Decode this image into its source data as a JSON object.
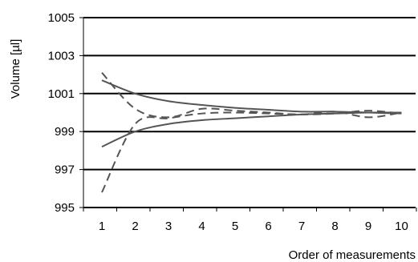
{
  "chart_data": {
    "type": "line",
    "title": "",
    "xlabel": "Order of measurements",
    "ylabel": "Volume [µl]",
    "x": [
      1,
      2,
      3,
      4,
      5,
      6,
      7,
      8,
      9,
      10
    ],
    "x_tick_labels": [
      "1",
      "2",
      "3",
      "4",
      "5",
      "6",
      "7",
      "8",
      "9",
      "10"
    ],
    "y_tick_labels": [
      "995",
      "997",
      "999",
      "1001",
      "1003",
      "1005"
    ],
    "ylim": [
      995,
      1005
    ],
    "y_ticks": [
      995,
      997,
      999,
      1001,
      1003,
      1005
    ],
    "grid": true,
    "legend": "none",
    "series": [
      {
        "style": "solid",
        "color": "#555555",
        "values": [
          1001.7,
          1001.0,
          1000.6,
          1000.4,
          1000.25,
          1000.15,
          1000.05,
          1000.05,
          1000.0,
          999.95
        ]
      },
      {
        "style": "solid",
        "color": "#555555",
        "values": [
          998.2,
          999.0,
          999.4,
          999.6,
          999.7,
          999.8,
          999.9,
          999.95,
          1000.0,
          1000.0
        ]
      },
      {
        "style": "dashed",
        "color": "#555555",
        "values": [
          1002.1,
          1000.2,
          999.75,
          1000.2,
          1000.1,
          1000.0,
          999.9,
          1000.05,
          999.75,
          1000.0
        ]
      },
      {
        "style": "dashed",
        "color": "#555555",
        "values": [
          995.8,
          999.4,
          999.7,
          999.95,
          1000.0,
          999.95,
          999.9,
          999.95,
          1000.1,
          999.95
        ]
      }
    ]
  }
}
